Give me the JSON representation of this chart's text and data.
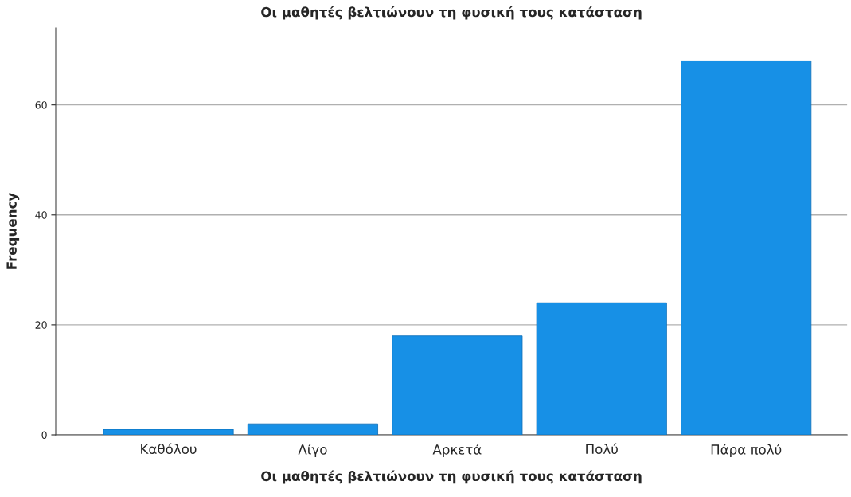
{
  "chart_data": {
    "type": "bar",
    "title": "Οι μαθητές βελτιώνουν τη φυσική τους κατάσταση",
    "xlabel": "Οι μαθητές βελτιώνουν τη φυσική τους κατάσταση",
    "ylabel": "Frequency",
    "categories": [
      "Καθόλου",
      "Λίγο",
      "Αρκετά",
      "Πολύ",
      "Πάρα πολύ"
    ],
    "values": [
      1,
      2,
      18,
      24,
      68
    ],
    "color": "#1790e6",
    "ylim": [
      0,
      74
    ],
    "yticks": [
      0,
      20,
      40,
      60
    ],
    "grid": "y",
    "legend": false
  }
}
